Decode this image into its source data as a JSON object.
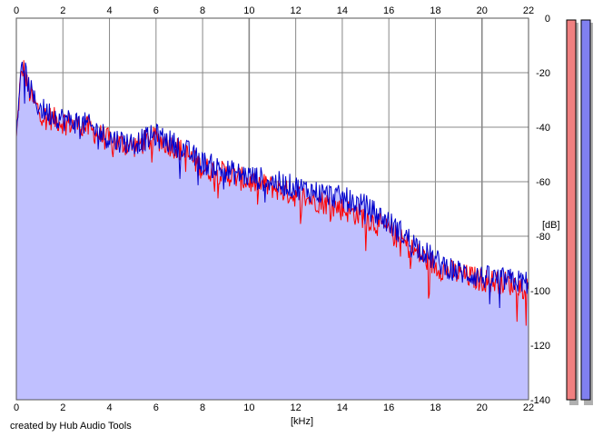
{
  "chart_data": {
    "type": "area",
    "xlabel": "[kHz]",
    "ylabel": "[dB]",
    "xlim": [
      0,
      22
    ],
    "ylim": [
      -140,
      0
    ],
    "x_ticks": [
      "0",
      "2",
      "4",
      "6",
      "8",
      "10",
      "12",
      "14",
      "16",
      "18",
      "20",
      "22"
    ],
    "y_ticks": [
      "0",
      "-20",
      "-40",
      "-60",
      "-80",
      "-100",
      "-120",
      "-140"
    ],
    "grid": true,
    "series": [
      {
        "color": "#ff0000",
        "x": [
          0.0,
          0.15,
          0.3,
          0.5,
          0.8,
          1.2,
          2.0,
          3.0,
          4.0,
          5.0,
          6.0,
          7.0,
          8.0,
          9.0,
          10.0,
          11.0,
          12.0,
          13.0,
          14.0,
          15.0,
          16.0,
          17.0,
          18.0,
          19.0,
          20.0,
          21.0,
          22.0
        ],
        "y": [
          -45,
          -25,
          -18,
          -26,
          -32,
          -36,
          -38,
          -40,
          -45,
          -47,
          -44,
          -48,
          -55,
          -57,
          -60,
          -62,
          -65,
          -67,
          -70,
          -73,
          -78,
          -85,
          -91,
          -94,
          -96,
          -97,
          -99
        ]
      },
      {
        "color": "#0000cc",
        "x": [
          0.0,
          0.15,
          0.3,
          0.5,
          0.8,
          1.2,
          2.0,
          3.0,
          4.0,
          5.0,
          6.0,
          7.0,
          8.0,
          9.0,
          10.0,
          11.0,
          12.0,
          13.0,
          14.0,
          15.0,
          16.0,
          17.0,
          18.0,
          19.0,
          20.0,
          21.0,
          22.0
        ],
        "y": [
          -42,
          -23,
          -17,
          -24,
          -31,
          -34,
          -37,
          -39,
          -44,
          -46,
          -43,
          -47,
          -53,
          -56,
          -58,
          -60,
          -62,
          -64,
          -66,
          -69,
          -75,
          -82,
          -89,
          -93,
          -95,
          -96,
          -97
        ]
      }
    ],
    "fill_color": "#c0c0ff",
    "meters": [
      {
        "color": "#f08080",
        "level": 1.0
      },
      {
        "color": "#8080f0",
        "level": 1.0
      }
    ]
  },
  "footer": {
    "credit": "created by Hub Audio Tools"
  }
}
